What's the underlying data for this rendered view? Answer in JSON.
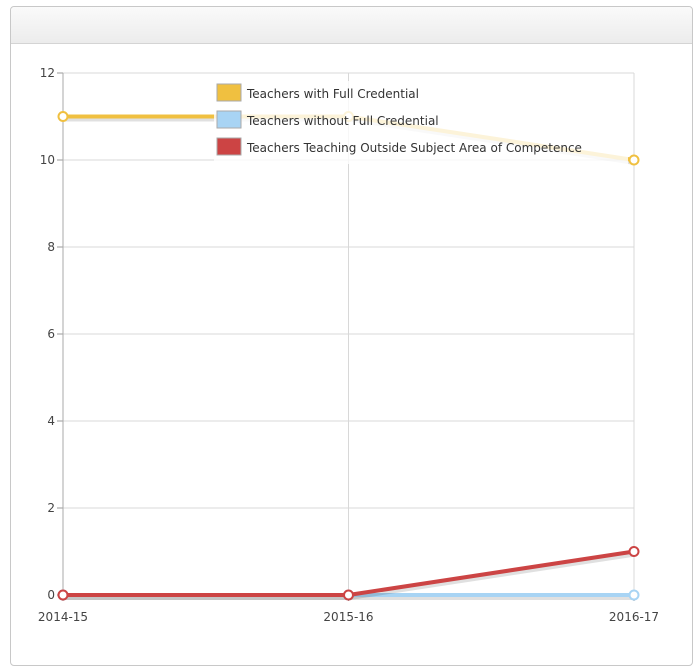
{
  "colors": {
    "full": "#f0c040",
    "without": "#a8d4f4",
    "outside": "#cc4444"
  },
  "chart_data": {
    "type": "line",
    "categories": [
      "2014-15",
      "2015-16",
      "2016-17"
    ],
    "ylim": [
      0,
      12
    ],
    "yticks": [
      "0",
      "2",
      "4",
      "6",
      "8",
      "10",
      "12"
    ],
    "grid": true,
    "legend_position": "top-center",
    "series": [
      {
        "name": "Teachers with Full Credential",
        "values": [
          11,
          11,
          10
        ],
        "color": "#f0c040"
      },
      {
        "name": "Teachers without Full Credential",
        "values": [
          0,
          0,
          0
        ],
        "color": "#a8d4f4"
      },
      {
        "name": "Teachers Teaching Outside Subject Area of Competence",
        "values": [
          0,
          0,
          1
        ],
        "color": "#cc4444"
      }
    ]
  }
}
